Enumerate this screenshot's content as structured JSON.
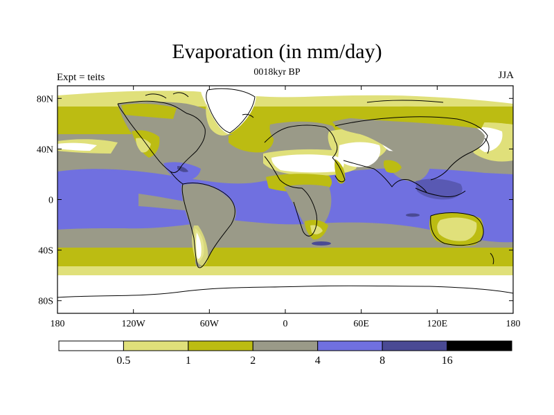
{
  "title": "Evaporation (in mm/day)",
  "subtitle": "0018kyr BP",
  "left_label": "Expt = teits",
  "right_label": "JJA",
  "lat_ticks": [
    {
      "value": 80,
      "label": "80N"
    },
    {
      "value": 40,
      "label": "40N"
    },
    {
      "value": 0,
      "label": "0"
    },
    {
      "value": -40,
      "label": "40S"
    },
    {
      "value": -80,
      "label": "80S"
    }
  ],
  "lon_ticks": [
    {
      "value": -180,
      "label": "180"
    },
    {
      "value": -120,
      "label": "120W"
    },
    {
      "value": -60,
      "label": "60W"
    },
    {
      "value": 0,
      "label": "0"
    },
    {
      "value": 60,
      "label": "60E"
    },
    {
      "value": 120,
      "label": "120E"
    },
    {
      "value": 180,
      "label": "180"
    }
  ],
  "colorbar": {
    "colors": [
      "#ffffff",
      "#e0e07a",
      "#bcbc12",
      "#9a9a88",
      "#7070e0",
      "#4a4a94",
      "#000000"
    ],
    "labels": [
      "0.5",
      "1",
      "2",
      "4",
      "8",
      "16"
    ]
  },
  "chart_data": {
    "type": "heatmap",
    "title": "Evaporation (in mm/day)",
    "variable": "Evaporation",
    "units": "mm/day",
    "period": "0018kyr BP",
    "season": "JJA",
    "experiment": "teits",
    "lon_range": [
      -180,
      180
    ],
    "lat_range": [
      -90,
      90
    ],
    "levels": [
      0.5,
      1,
      2,
      4,
      8,
      16
    ]
  }
}
